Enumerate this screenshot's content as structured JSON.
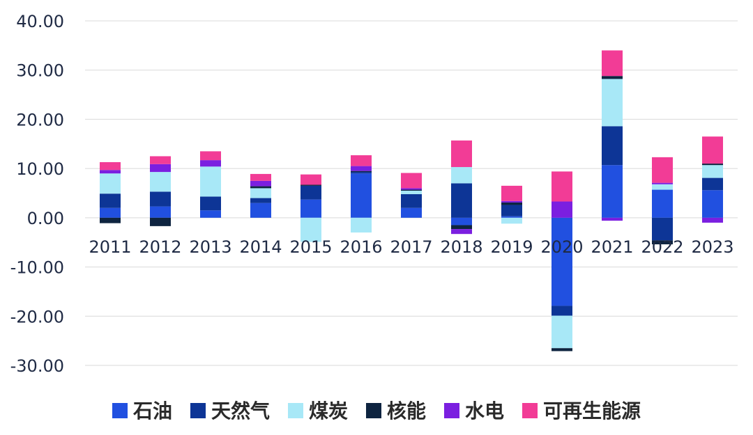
{
  "chart_data": {
    "type": "bar",
    "stacked": true,
    "categories": [
      "2011",
      "2012",
      "2013",
      "2014",
      "2015",
      "2016",
      "2017",
      "2018",
      "2019",
      "2020",
      "2021",
      "2022",
      "2023"
    ],
    "y_ticks": [
      "40.00",
      "30.00",
      "20.00",
      "10.00",
      "0.00",
      "-10.00",
      "-20.00",
      "-30.00"
    ],
    "ylim": [
      -30,
      40
    ],
    "grid": true,
    "legend_position": "bottom",
    "series": [
      {
        "name": "石油",
        "color": "#2150e0",
        "values": [
          2.0,
          2.3,
          1.5,
          3.0,
          3.7,
          9.0,
          2.0,
          -1.5,
          0.3,
          -17.9,
          10.7,
          5.7,
          5.6
        ]
      },
      {
        "name": "天然气",
        "color": "#0d3596",
        "values": [
          2.9,
          3.0,
          2.8,
          1.0,
          2.8,
          0.3,
          2.8,
          7.0,
          2.3,
          -2.0,
          7.9,
          -4.6,
          2.5
        ]
      },
      {
        "name": "煤炭",
        "color": "#a8e8f7",
        "values": [
          4.1,
          4.0,
          6.1,
          2.0,
          -4.9,
          -3.0,
          0.7,
          3.3,
          -1.2,
          -6.6,
          9.6,
          1.1,
          2.6
        ]
      },
      {
        "name": "核能",
        "color": "#0e2440",
        "values": [
          -1.1,
          -1.7,
          0.0,
          0.4,
          0.2,
          0.2,
          0.2,
          -0.8,
          0.5,
          -0.6,
          0.6,
          -0.8,
          0.3
        ]
      },
      {
        "name": "水电",
        "color": "#7b1fe0",
        "values": [
          0.7,
          1.6,
          1.3,
          1.1,
          0.0,
          1.0,
          0.3,
          -1.0,
          0.3,
          3.3,
          -0.6,
          0.3,
          -1.0
        ]
      },
      {
        "name": "可再生能源",
        "color": "#f23c96",
        "values": [
          1.6,
          1.6,
          1.8,
          1.4,
          2.1,
          2.2,
          3.1,
          5.4,
          3.1,
          6.1,
          5.2,
          5.2,
          5.5
        ]
      }
    ]
  }
}
